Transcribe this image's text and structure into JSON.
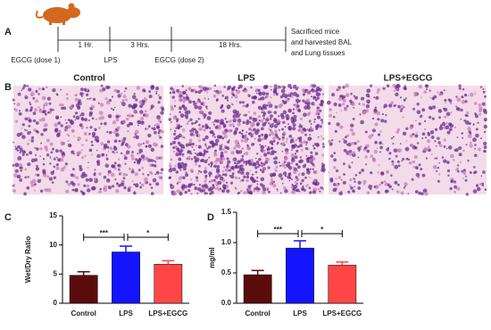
{
  "panel_labels": [
    "A",
    "B",
    "C",
    "D"
  ],
  "timeline": {
    "events": [
      "EGCG (dose 1)",
      "LPS",
      "EGCG (dose 2)"
    ],
    "intervals": [
      "1 Hr.",
      "3 Hrs.",
      "18 Hrs."
    ],
    "end_note": [
      "Sacrificed mice",
      "and harvested BAL",
      "and Lung tissues"
    ]
  },
  "histology": {
    "titles": [
      "Control",
      "LPS",
      "LPS+EGCG"
    ]
  },
  "chart_data": [
    {
      "type": "bar",
      "y_label": "Wet/Dry Ratio",
      "categories": [
        "Control",
        "LPS",
        "LPS+EGCG"
      ],
      "values": [
        4.8,
        8.8,
        6.7
      ],
      "errors": [
        0.6,
        1.0,
        0.6
      ],
      "colors": [
        "#5a0c0c",
        "#1414ff",
        "#ff4646"
      ],
      "ylim": [
        0,
        15
      ],
      "yticks": [
        0,
        5,
        10,
        15
      ],
      "annotations": [
        "***",
        "*"
      ]
    },
    {
      "type": "bar",
      "y_label": "mg/ml",
      "categories": [
        "Control",
        "LPS",
        "LPS+EGCG"
      ],
      "values": [
        0.47,
        0.91,
        0.63
      ],
      "errors": [
        0.07,
        0.12,
        0.05
      ],
      "colors": [
        "#5a0c0c",
        "#1414ff",
        "#ff4646"
      ],
      "ylim": [
        0,
        1.5
      ],
      "yticks": [
        {
          "value": 0,
          "label": "0.0"
        },
        0.5,
        {
          "value": 1,
          "label": "1.0"
        },
        1.5
      ],
      "annotations": [
        "***",
        "*"
      ]
    }
  ]
}
